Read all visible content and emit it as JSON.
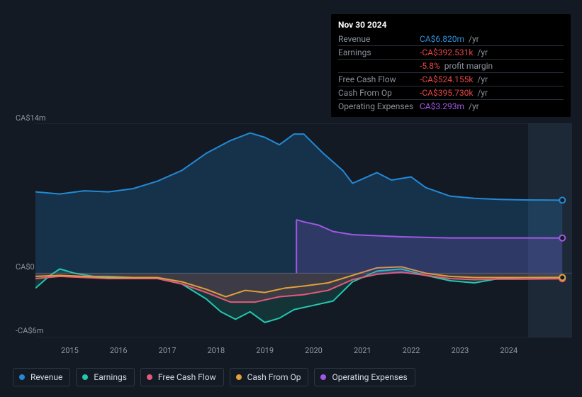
{
  "tooltip": {
    "date": "Nov 30 2024",
    "rows": [
      {
        "label": "Revenue",
        "value": "CA$6.820m",
        "color": "#2f8fd8",
        "suffix": "/yr"
      },
      {
        "label": "Earnings",
        "value": "-CA$392.531k",
        "color": "#e64545",
        "suffix": "/yr"
      },
      {
        "label": "",
        "value": "-5.8%",
        "color": "#e64545",
        "suffix": "profit margin"
      },
      {
        "label": "Free Cash Flow",
        "value": "-CA$524.155k",
        "color": "#e64545",
        "suffix": "/yr"
      },
      {
        "label": "Cash From Op",
        "value": "-CA$395.730k",
        "color": "#e64545",
        "suffix": "/yr"
      },
      {
        "label": "Operating Expenses",
        "value": "CA$3.293m",
        "color": "#a257e6",
        "suffix": "/yr"
      }
    ]
  },
  "chart": {
    "type": "area",
    "background_color": "#131a23",
    "grid_color": "#2a323d",
    "axis_label_color": "#8e969f",
    "axis_font_size": 11,
    "yaxis": {
      "labels": [
        "CA$14m",
        "CA$0",
        "-CA$6m"
      ],
      "values_M": [
        14,
        0,
        -6
      ],
      "range_M": [
        -6,
        14
      ]
    },
    "xaxis": {
      "labels": [
        "2015",
        "2016",
        "2017",
        "2018",
        "2019",
        "2020",
        "2021",
        "2022",
        "2023",
        "2024"
      ],
      "range_year": [
        2014.5,
        2025.5
      ]
    },
    "cursor_year": 2024.92,
    "future_band_start_year": 2024.6,
    "series": [
      {
        "name": "Revenue",
        "color": "#2389d6",
        "fill_opacity": 0.22,
        "end_marker": true,
        "data": [
          [
            2014.5,
            7.6
          ],
          [
            2015,
            7.4
          ],
          [
            2015.5,
            7.7
          ],
          [
            2016,
            7.6
          ],
          [
            2016.5,
            7.9
          ],
          [
            2017,
            8.6
          ],
          [
            2017.5,
            9.6
          ],
          [
            2018,
            11.2
          ],
          [
            2018.5,
            12.4
          ],
          [
            2018.9,
            13.1
          ],
          [
            2019.2,
            12.7
          ],
          [
            2019.5,
            12.0
          ],
          [
            2019.8,
            13.0
          ],
          [
            2020.0,
            13.0
          ],
          [
            2020.4,
            11.2
          ],
          [
            2020.8,
            9.6
          ],
          [
            2021.0,
            8.4
          ],
          [
            2021.5,
            9.4
          ],
          [
            2021.8,
            8.7
          ],
          [
            2022.2,
            9.0
          ],
          [
            2022.5,
            8.0
          ],
          [
            2023,
            7.2
          ],
          [
            2023.5,
            7.0
          ],
          [
            2024,
            6.9
          ],
          [
            2024.5,
            6.85
          ],
          [
            2025.3,
            6.82
          ]
        ]
      },
      {
        "name": "Earnings",
        "color": "#21c9b1",
        "fill_opacity": 0.15,
        "end_marker": true,
        "data": [
          [
            2014.5,
            -1.4
          ],
          [
            2014.8,
            -0.2
          ],
          [
            2015,
            0.4
          ],
          [
            2015.3,
            0.0
          ],
          [
            2015.7,
            -0.3
          ],
          [
            2016,
            -0.3
          ],
          [
            2016.5,
            -0.4
          ],
          [
            2017,
            -0.5
          ],
          [
            2017.5,
            -1.0
          ],
          [
            2018,
            -2.4
          ],
          [
            2018.3,
            -3.6
          ],
          [
            2018.6,
            -4.3
          ],
          [
            2018.9,
            -3.6
          ],
          [
            2019.2,
            -4.6
          ],
          [
            2019.5,
            -4.2
          ],
          [
            2019.8,
            -3.4
          ],
          [
            2020.2,
            -3.0
          ],
          [
            2020.6,
            -2.6
          ],
          [
            2021,
            -0.8
          ],
          [
            2021.5,
            0.2
          ],
          [
            2022,
            0.4
          ],
          [
            2022.5,
            -0.2
          ],
          [
            2023,
            -0.7
          ],
          [
            2023.5,
            -0.9
          ],
          [
            2024,
            -0.5
          ],
          [
            2024.5,
            -0.4
          ],
          [
            2025.3,
            -0.39
          ]
        ]
      },
      {
        "name": "Free Cash Flow",
        "color": "#e25a7b",
        "fill_opacity": 0.2,
        "end_marker": true,
        "data": [
          [
            2014.5,
            -0.5
          ],
          [
            2015,
            -0.3
          ],
          [
            2015.5,
            -0.4
          ],
          [
            2016,
            -0.5
          ],
          [
            2016.5,
            -0.5
          ],
          [
            2017,
            -0.5
          ],
          [
            2017.5,
            -1.0
          ],
          [
            2018,
            -1.8
          ],
          [
            2018.5,
            -2.7
          ],
          [
            2019,
            -2.7
          ],
          [
            2019.5,
            -2.2
          ],
          [
            2020,
            -2.0
          ],
          [
            2020.5,
            -1.6
          ],
          [
            2021,
            -0.6
          ],
          [
            2021.5,
            -0.1
          ],
          [
            2022,
            0.1
          ],
          [
            2022.5,
            -0.2
          ],
          [
            2023,
            -0.5
          ],
          [
            2023.5,
            -0.6
          ],
          [
            2024,
            -0.55
          ],
          [
            2024.5,
            -0.55
          ],
          [
            2025.3,
            -0.52
          ]
        ]
      },
      {
        "name": "Cash From Op",
        "color": "#e0a03a",
        "fill_opacity": 0.0,
        "end_marker": true,
        "data": [
          [
            2014.5,
            -0.3
          ],
          [
            2015,
            -0.2
          ],
          [
            2015.5,
            -0.3
          ],
          [
            2016,
            -0.4
          ],
          [
            2016.5,
            -0.4
          ],
          [
            2017,
            -0.4
          ],
          [
            2017.5,
            -0.8
          ],
          [
            2018,
            -1.5
          ],
          [
            2018.4,
            -2.2
          ],
          [
            2018.8,
            -1.6
          ],
          [
            2019.2,
            -1.8
          ],
          [
            2019.6,
            -1.4
          ],
          [
            2020,
            -1.2
          ],
          [
            2020.5,
            -0.9
          ],
          [
            2021,
            -0.2
          ],
          [
            2021.5,
            0.5
          ],
          [
            2022,
            0.6
          ],
          [
            2022.5,
            0.0
          ],
          [
            2023,
            -0.3
          ],
          [
            2023.5,
            -0.4
          ],
          [
            2024,
            -0.4
          ],
          [
            2024.5,
            -0.4
          ],
          [
            2025.3,
            -0.4
          ]
        ]
      },
      {
        "name": "Operating Expenses",
        "color": "#a257e6",
        "fill_opacity": 0.18,
        "end_marker": true,
        "partial": true,
        "data": [
          [
            2019.85,
            5.0
          ],
          [
            2020.0,
            4.8
          ],
          [
            2020.3,
            4.5
          ],
          [
            2020.6,
            3.9
          ],
          [
            2021,
            3.6
          ],
          [
            2021.5,
            3.5
          ],
          [
            2022,
            3.4
          ],
          [
            2022.5,
            3.35
          ],
          [
            2023,
            3.3
          ],
          [
            2023.5,
            3.3
          ],
          [
            2024,
            3.3
          ],
          [
            2024.5,
            3.3
          ],
          [
            2025.3,
            3.29
          ]
        ]
      }
    ]
  },
  "legend": [
    {
      "label": "Revenue",
      "color": "#2389d6"
    },
    {
      "label": "Earnings",
      "color": "#21c9b1"
    },
    {
      "label": "Free Cash Flow",
      "color": "#e25a7b"
    },
    {
      "label": "Cash From Op",
      "color": "#e0a03a"
    },
    {
      "label": "Operating Expenses",
      "color": "#a257e6"
    }
  ]
}
